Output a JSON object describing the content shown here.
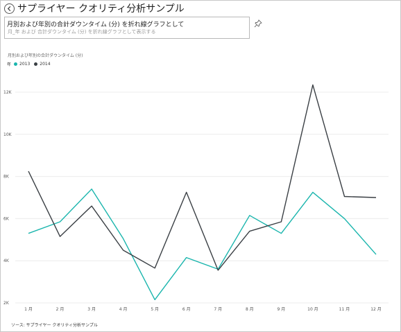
{
  "header": {
    "title": "サプライヤー クオリティ分析サンプル",
    "back_icon": "back-arrow-icon"
  },
  "qa": {
    "value": "月別および年別の合計ダウンタイム (分) を折れ線グラフとして",
    "hint": "月_年 および 合計ダウンタイム (分) を折れ線グラフとして表示する"
  },
  "pin_icon": "pin-icon",
  "chart_data": {
    "type": "line",
    "title": "月別および年別の合計ダウンタイム (分)",
    "legend_title": "年",
    "legend_position": "top-left",
    "categories": [
      "1 月",
      "2 月",
      "3 月",
      "4 月",
      "5 月",
      "6 月",
      "7 月",
      "8 月",
      "9 月",
      "10 月",
      "11 月",
      "12 月"
    ],
    "series": [
      {
        "name": "2013",
        "color": "#1ab5ad",
        "values": [
          5300,
          5850,
          7400,
          5050,
          2150,
          4150,
          3600,
          6150,
          5300,
          7250,
          6000,
          4300
        ]
      },
      {
        "name": "2014",
        "color": "#3a3f44",
        "values": [
          8250,
          5150,
          6600,
          4500,
          3650,
          7250,
          3550,
          5400,
          5850,
          12350,
          7050,
          7000
        ]
      }
    ],
    "y_ticks": [
      "2K",
      "4K",
      "6K",
      "8K",
      "10K",
      "12K"
    ],
    "ylim": [
      2000,
      12500
    ],
    "grid": true
  },
  "footer": {
    "source": "ソース: サプライヤー クオリティ分析サンプル"
  }
}
